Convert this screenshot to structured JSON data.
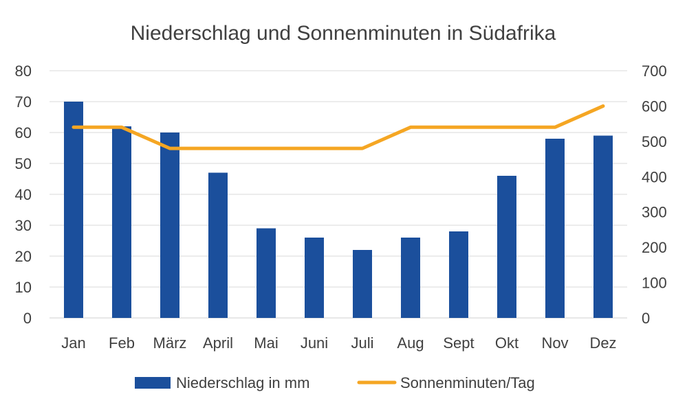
{
  "chart_data": {
    "type": "bar",
    "title": "Niederschlag und Sonnenminuten in Südafrika",
    "categories": [
      "Jan",
      "Feb",
      "März",
      "April",
      "Mai",
      "Juni",
      "Juli",
      "Aug",
      "Sept",
      "Okt",
      "Nov",
      "Dez"
    ],
    "series": [
      {
        "name": "Niederschlag in mm",
        "type": "bar",
        "axis": "left",
        "color": "#1b4f9c",
        "values": [
          70,
          62,
          60,
          47,
          29,
          26,
          22,
          26,
          28,
          46,
          58,
          59
        ]
      },
      {
        "name": "Sonnenminuten/Tag",
        "type": "line",
        "axis": "right",
        "color": "#f5a623",
        "values": [
          540,
          540,
          480,
          480,
          480,
          480,
          480,
          540,
          540,
          540,
          540,
          600
        ]
      }
    ],
    "y_left": {
      "ylim": [
        0,
        80
      ],
      "ticks": [
        "0",
        "10",
        "20",
        "30",
        "40",
        "50",
        "60",
        "70",
        "80"
      ]
    },
    "y_right": {
      "ylim": [
        0,
        700
      ],
      "ticks": [
        "0",
        "100",
        "200",
        "300",
        "400",
        "500",
        "600",
        "700"
      ]
    },
    "grid": true,
    "legend_position": "bottom"
  }
}
